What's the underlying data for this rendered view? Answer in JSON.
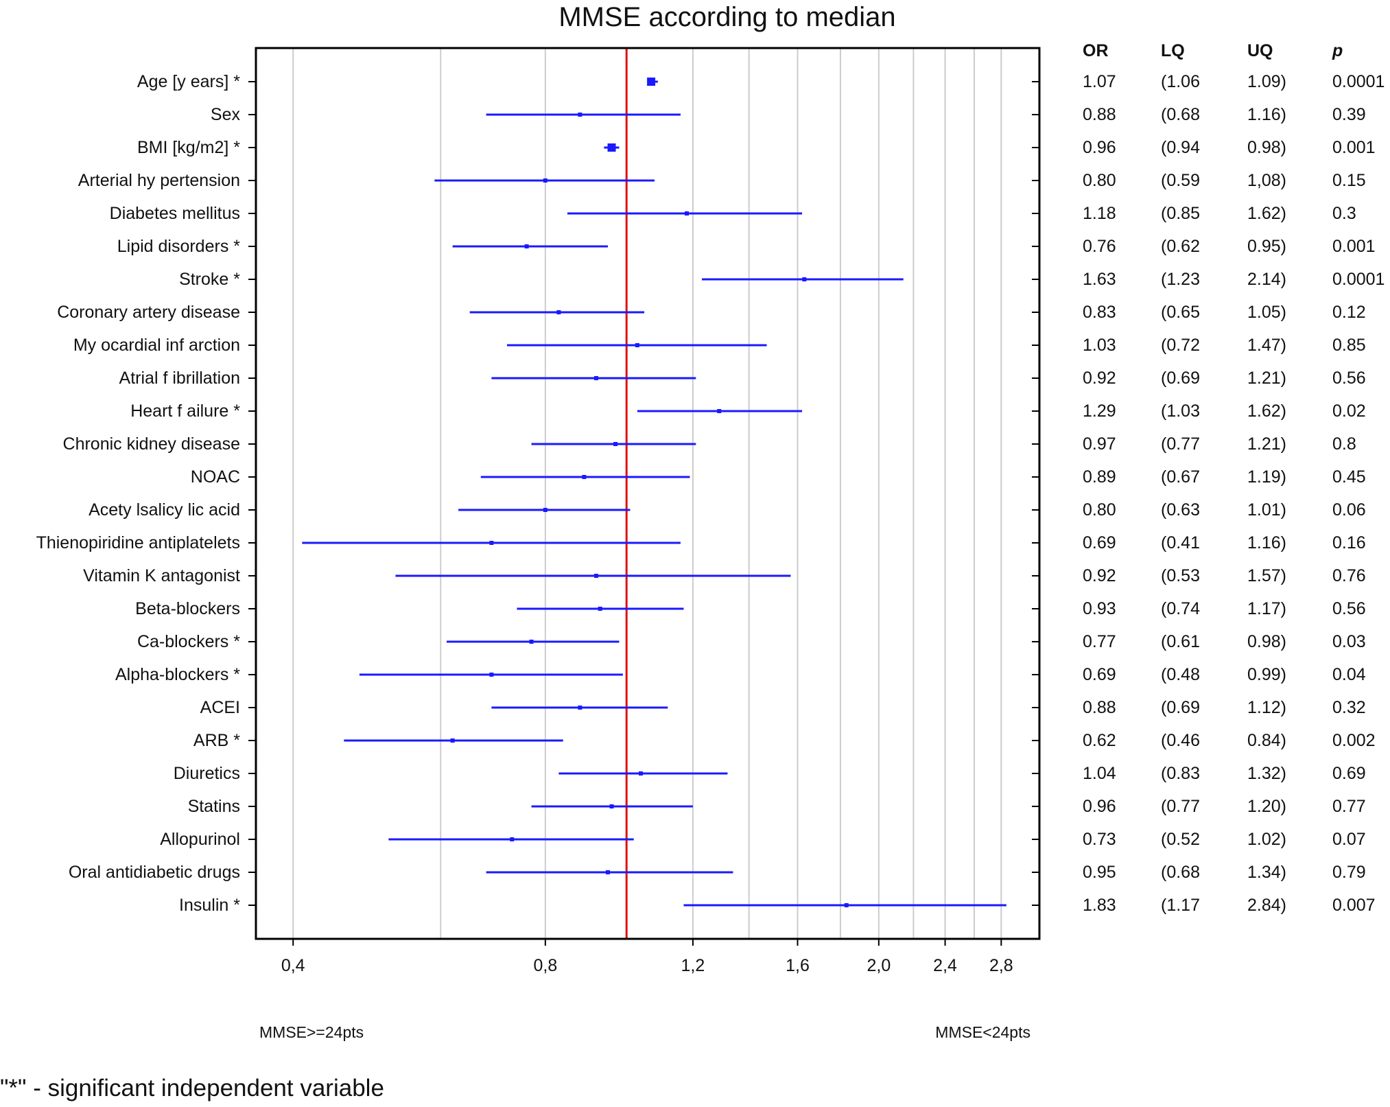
{
  "chart_data": {
    "type": "forest",
    "title": "MMSE according to median",
    "x_scale": "log",
    "xlim": [
      0.38,
      2.95
    ],
    "x_ticks": [
      0.4,
      0.8,
      1.2,
      1.6,
      2.0,
      2.4,
      2.8
    ],
    "x_tick_labels": [
      "0,4",
      "0,8",
      "1,2",
      "1,6",
      "2,0",
      "2,4",
      "2,8"
    ],
    "grid_lines": [
      0.4,
      0.6,
      0.8,
      1.0,
      1.2,
      1.4,
      1.6,
      1.8,
      2.0,
      2.2,
      2.4,
      2.6,
      2.8
    ],
    "reference_line": 1.0,
    "left_label": "MMSE>=24pts",
    "right_label": "MMSE<24pts",
    "table_headers": {
      "or": "OR",
      "lq": "LQ",
      "uq": "UQ",
      "p": "p"
    },
    "rows": [
      {
        "label": "Age [y ears] *",
        "or": 1.07,
        "lq": 1.06,
        "uq": 1.09,
        "or_text": "1.07",
        "lq_text": "(1.06",
        "uq_text": "1.09)",
        "p_text": "0.0001"
      },
      {
        "label": "Sex",
        "or": 0.88,
        "lq": 0.68,
        "uq": 1.16,
        "or_text": "0.88",
        "lq_text": "(0.68",
        "uq_text": "1.16)",
        "p_text": "0.39"
      },
      {
        "label": "BMI [kg/m2] *",
        "or": 0.96,
        "lq": 0.94,
        "uq": 0.98,
        "or_text": "0.96",
        "lq_text": "(0.94",
        "uq_text": "0.98)",
        "p_text": "0.001"
      },
      {
        "label": "Arterial hy pertension",
        "or": 0.8,
        "lq": 0.59,
        "uq": 1.08,
        "or_text": "0.80",
        "lq_text": "(0.59",
        "uq_text": "1,08)",
        "p_text": "0.15"
      },
      {
        "label": "Diabetes mellitus",
        "or": 1.18,
        "lq": 0.85,
        "uq": 1.62,
        "or_text": "1.18",
        "lq_text": "(0.85",
        "uq_text": "1.62)",
        "p_text": "0.3"
      },
      {
        "label": "Lipid disorders *",
        "or": 0.76,
        "lq": 0.62,
        "uq": 0.95,
        "or_text": "0.76",
        "lq_text": "(0.62",
        "uq_text": "0.95)",
        "p_text": "0.001"
      },
      {
        "label": "Stroke *",
        "or": 1.63,
        "lq": 1.23,
        "uq": 2.14,
        "or_text": "1.63",
        "lq_text": "(1.23",
        "uq_text": "2.14)",
        "p_text": "0.0001"
      },
      {
        "label": "Coronary  artery  disease",
        "or": 0.83,
        "lq": 0.65,
        "uq": 1.05,
        "or_text": "0.83",
        "lq_text": "(0.65",
        "uq_text": "1.05)",
        "p_text": "0.12"
      },
      {
        "label": "My ocardial inf arction",
        "or": 1.03,
        "lq": 0.72,
        "uq": 1.47,
        "or_text": "1.03",
        "lq_text": "(0.72",
        "uq_text": "1.47)",
        "p_text": "0.85"
      },
      {
        "label": "Atrial f ibrillation",
        "or": 0.92,
        "lq": 0.69,
        "uq": 1.21,
        "or_text": "0.92",
        "lq_text": "(0.69",
        "uq_text": "1.21)",
        "p_text": "0.56"
      },
      {
        "label": "Heart f ailure *",
        "or": 1.29,
        "lq": 1.03,
        "uq": 1.62,
        "or_text": "1.29",
        "lq_text": "(1.03",
        "uq_text": "1.62)",
        "p_text": "0.02"
      },
      {
        "label": "Chronic kidney  disease",
        "or": 0.97,
        "lq": 0.77,
        "uq": 1.21,
        "or_text": "0.97",
        "lq_text": "(0.77",
        "uq_text": "1.21)",
        "p_text": "0.8"
      },
      {
        "label": "NOAC",
        "or": 0.89,
        "lq": 0.67,
        "uq": 1.19,
        "or_text": "0.89",
        "lq_text": "(0.67",
        "uq_text": "1.19)",
        "p_text": "0.45"
      },
      {
        "label": "Acety lsalicy lic acid",
        "or": 0.8,
        "lq": 0.63,
        "uq": 1.01,
        "or_text": "0.80",
        "lq_text": "(0.63",
        "uq_text": "1.01)",
        "p_text": "0.06"
      },
      {
        "label": "Thienopiridine antiplatelets",
        "or": 0.69,
        "lq": 0.41,
        "uq": 1.16,
        "or_text": "0.69",
        "lq_text": "(0.41",
        "uq_text": "1.16)",
        "p_text": "0.16"
      },
      {
        "label": "Vitamin K antagonist",
        "or": 0.92,
        "lq": 0.53,
        "uq": 1.57,
        "or_text": "0.92",
        "lq_text": "(0.53",
        "uq_text": "1.57)",
        "p_text": "0.76"
      },
      {
        "label": "Beta-blockers",
        "or": 0.93,
        "lq": 0.74,
        "uq": 1.17,
        "or_text": "0.93",
        "lq_text": "(0.74",
        "uq_text": "1.17)",
        "p_text": "0.56"
      },
      {
        "label": "Ca-blockers *",
        "or": 0.77,
        "lq": 0.61,
        "uq": 0.98,
        "or_text": "0.77",
        "lq_text": "(0.61",
        "uq_text": "0.98)",
        "p_text": "0.03"
      },
      {
        "label": "Alpha-blockers *",
        "or": 0.69,
        "lq": 0.48,
        "uq": 0.99,
        "or_text": "0.69",
        "lq_text": "(0.48",
        "uq_text": "0.99)",
        "p_text": "0.04"
      },
      {
        "label": "ACEI",
        "or": 0.88,
        "lq": 0.69,
        "uq": 1.12,
        "or_text": "0.88",
        "lq_text": "(0.69",
        "uq_text": "1.12)",
        "p_text": "0.32"
      },
      {
        "label": "ARB *",
        "or": 0.62,
        "lq": 0.46,
        "uq": 0.84,
        "or_text": "0.62",
        "lq_text": "(0.46",
        "uq_text": "0.84)",
        "p_text": "0.002"
      },
      {
        "label": "Diuretics",
        "or": 1.04,
        "lq": 0.83,
        "uq": 1.32,
        "or_text": "1.04",
        "lq_text": "(0.83",
        "uq_text": "1.32)",
        "p_text": "0.69"
      },
      {
        "label": "Statins",
        "or": 0.96,
        "lq": 0.77,
        "uq": 1.2,
        "or_text": "0.96",
        "lq_text": "(0.77",
        "uq_text": "1.20)",
        "p_text": "0.77"
      },
      {
        "label": "Allopurinol",
        "or": 0.73,
        "lq": 0.52,
        "uq": 1.02,
        "or_text": "0.73",
        "lq_text": "(0.52",
        "uq_text": "1.02)",
        "p_text": "0.07"
      },
      {
        "label": "Oral antidiabetic drugs",
        "or": 0.95,
        "lq": 0.68,
        "uq": 1.34,
        "or_text": "0.95",
        "lq_text": "(0.68",
        "uq_text": "1.34)",
        "p_text": "0.79"
      },
      {
        "label": "Insulin *",
        "or": 1.83,
        "lq": 1.17,
        "uq": 2.84,
        "or_text": "1.83",
        "lq_text": "(1.17",
        "uq_text": "2.84)",
        "p_text": "0.007"
      }
    ],
    "colors": {
      "ci": "#1a1aff",
      "reference": "#e01010",
      "grid": "#cccccc",
      "frame": "#000000"
    }
  },
  "footnote": "\"*\" - significant independent variable"
}
